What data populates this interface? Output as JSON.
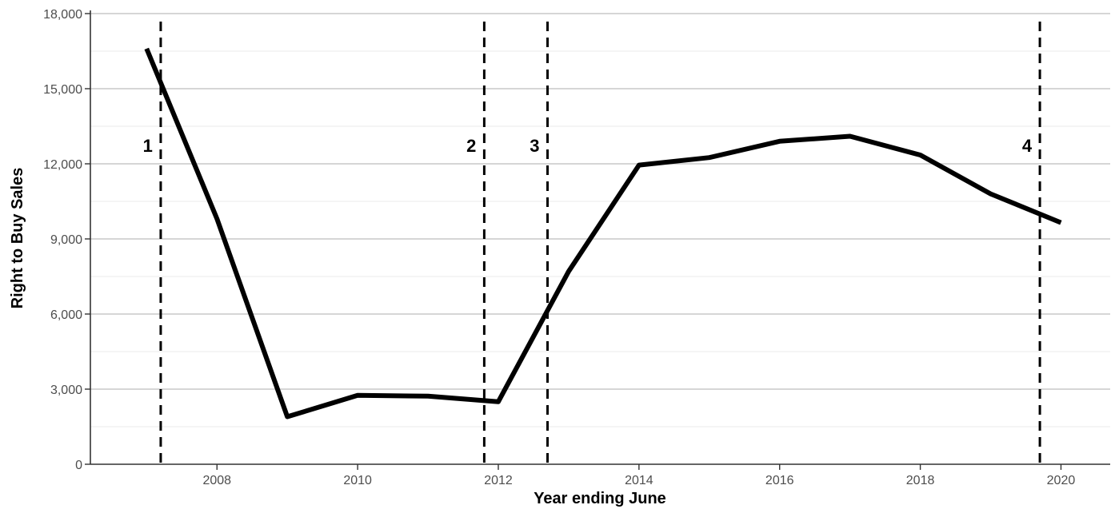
{
  "chart_data": {
    "type": "line",
    "title": "",
    "xlabel": "Year ending June",
    "ylabel": "Right to Buy Sales",
    "xlim": [
      2006.2,
      2020.7
    ],
    "ylim": [
      0,
      18000
    ],
    "x_ticks": [
      2008,
      2010,
      2012,
      2014,
      2016,
      2018,
      2020
    ],
    "y_ticks": [
      0,
      3000,
      6000,
      9000,
      12000,
      15000,
      18000
    ],
    "y_tick_labels": [
      "0",
      "3,000",
      "6,000",
      "9,000",
      "12,000",
      "15,000",
      "18,000"
    ],
    "grid": true,
    "legend": "none",
    "series": [
      {
        "x": [
          2007,
          2008,
          2009,
          2010,
          2011,
          2012,
          2013,
          2014,
          2015,
          2016,
          2017,
          2018,
          2019,
          2020
        ],
        "values": [
          16600,
          9800,
          1900,
          2750,
          2720,
          2500,
          7700,
          11950,
          12250,
          12900,
          13100,
          12350,
          10800,
          9650
        ],
        "color": "#000000"
      }
    ],
    "events": [
      {
        "label": "1",
        "x": 2007.2
      },
      {
        "label": "2",
        "x": 2011.8
      },
      {
        "label": "3",
        "x": 2012.7
      },
      {
        "label": "4",
        "x": 2019.7
      }
    ]
  }
}
